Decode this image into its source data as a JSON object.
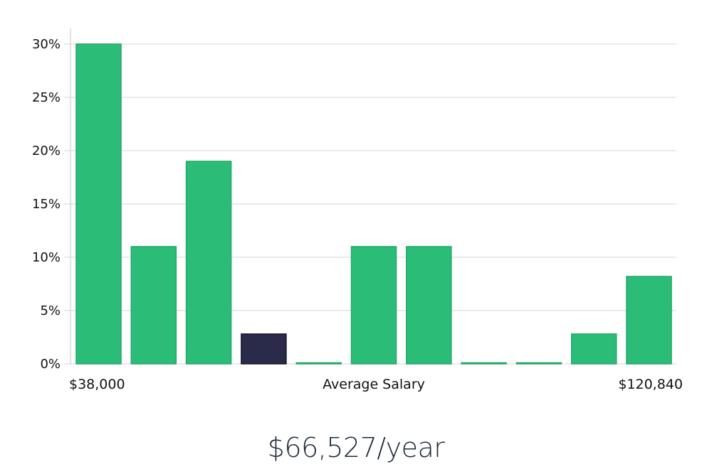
{
  "chart_data": {
    "type": "bar",
    "title": "",
    "xlabel": "Average Salary",
    "ylabel": "",
    "x_min_label": "$38,000",
    "x_max_label": "$120,840",
    "ylim": [
      0,
      30
    ],
    "yticks": [
      0,
      5,
      10,
      15,
      20,
      25,
      30
    ],
    "ytick_labels": [
      "0%",
      "5%",
      "10%",
      "15%",
      "20%",
      "25%",
      "30%"
    ],
    "grid": true,
    "values": [
      30,
      11,
      19,
      2.8,
      0.1,
      11,
      11,
      0.1,
      0.1,
      2.8,
      8.2
    ],
    "highlight_index": 3,
    "colors": {
      "bar": "#2bbd77",
      "bar_edge": "#22a866",
      "highlight": "#2a2a4a",
      "highlight_edge": "#141428"
    }
  },
  "summary": {
    "salary_text": "$66,527/year"
  }
}
